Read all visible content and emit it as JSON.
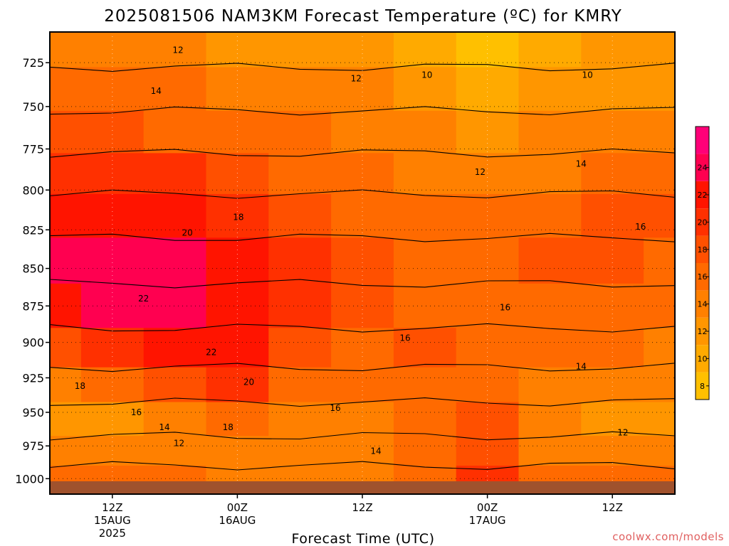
{
  "page": {
    "title": "2025081506 NAM3KM Forecast Temperature (ºC) for KMRY",
    "credit": "coolwx.com/models"
  },
  "chart_data": {
    "type": "heatmap",
    "subtype": "time-height filled contour",
    "title": "2025081506 NAM3KM Forecast Temperature (ºC) for KMRY",
    "xlabel": "Forecast Time (UTC)",
    "ylabel": "",
    "x_ticks": [
      {
        "label": "12Z",
        "sub": [
          "15AUG",
          "2025"
        ],
        "hour": 6
      },
      {
        "label": "00Z",
        "sub": [
          "16AUG"
        ],
        "hour": 18
      },
      {
        "label": "12Z",
        "sub": [],
        "hour": 30
      },
      {
        "label": "00Z",
        "sub": [
          "17AUG"
        ],
        "hour": 42
      },
      {
        "label": "12Z",
        "sub": [],
        "hour": 54
      }
    ],
    "xlim_hours": [
      0,
      60
    ],
    "y_ticks": [
      725,
      750,
      775,
      800,
      825,
      850,
      875,
      900,
      925,
      950,
      975,
      1000
    ],
    "y_unit": "hPa",
    "ylim": [
      708,
      1012
    ],
    "y_scale": "log",
    "grid": true,
    "surface_pressure_hpa": 1002,
    "colorbar": {
      "ticks": [
        8,
        10,
        12,
        14,
        16,
        18,
        20,
        22,
        24
      ],
      "levels": [
        7,
        9,
        11,
        13,
        15,
        17,
        19,
        21,
        23,
        25,
        27
      ],
      "colors": [
        "#ffc000",
        "#ffaa00",
        "#ff9600",
        "#ff8000",
        "#ff6a00",
        "#ff5000",
        "#ff3000",
        "#ff1400",
        "#ff0050",
        "#ff0078"
      ],
      "placement": "right"
    },
    "fill_bands": [
      {
        "t": 0,
        "colors": [
          "#ff8000",
          "#ff6a00",
          "#ff5000",
          "#ff3000",
          "#ff1400",
          "#ff0050",
          "#ff1400",
          "#ff5000",
          "#ff8000",
          "#ff9600",
          "#ff8000",
          "#ff6a00"
        ]
      },
      {
        "t": 6,
        "colors": [
          "#ff8000",
          "#ff6a00",
          "#ff5000",
          "#ff3000",
          "#ff1400",
          "#ff0050",
          "#ff0050",
          "#ff3000",
          "#ff6a00",
          "#ff9600",
          "#ff8000",
          "#ff6a00"
        ]
      },
      {
        "t": 12,
        "colors": [
          "#ff8000",
          "#ff6a00",
          "#ff6a00",
          "#ff3000",
          "#ff1400",
          "#ff0050",
          "#ff0050",
          "#ff1400",
          "#ff5000",
          "#ff8000",
          "#ff8000",
          "#ff6a00"
        ]
      },
      {
        "t": 18,
        "colors": [
          "#ff9600",
          "#ff8000",
          "#ff6a00",
          "#ff5000",
          "#ff3000",
          "#ff1400",
          "#ff1400",
          "#ff1400",
          "#ff3000",
          "#ff6a00",
          "#ff8000",
          "#ff8000"
        ]
      },
      {
        "t": 24,
        "colors": [
          "#ff9600",
          "#ff8000",
          "#ff6a00",
          "#ff6a00",
          "#ff5000",
          "#ff3000",
          "#ff3000",
          "#ff5000",
          "#ff6a00",
          "#ff8000",
          "#ff8000",
          "#ff8000"
        ]
      },
      {
        "t": 30,
        "colors": [
          "#ff9600",
          "#ff8000",
          "#ff8000",
          "#ff6a00",
          "#ff6a00",
          "#ff5000",
          "#ff5000",
          "#ff6a00",
          "#ff6a00",
          "#ff8000",
          "#ff8000",
          "#ff8000"
        ]
      },
      {
        "t": 36,
        "colors": [
          "#ffaa00",
          "#ff9600",
          "#ff8000",
          "#ff8000",
          "#ff6a00",
          "#ff6a00",
          "#ff6a00",
          "#ff5000",
          "#ff6a00",
          "#ff6a00",
          "#ff6a00",
          "#ff6a00"
        ]
      },
      {
        "t": 42,
        "colors": [
          "#ffc000",
          "#ffaa00",
          "#ff9600",
          "#ff8000",
          "#ff6a00",
          "#ff6a00",
          "#ff6a00",
          "#ff6a00",
          "#ff6a00",
          "#ff5000",
          "#ff5000",
          "#ff3000"
        ]
      },
      {
        "t": 48,
        "colors": [
          "#ffaa00",
          "#ff9600",
          "#ff8000",
          "#ff8000",
          "#ff6a00",
          "#ff5000",
          "#ff6a00",
          "#ff6a00",
          "#ff8000",
          "#ff8000",
          "#ff8000",
          "#ff6a00"
        ]
      },
      {
        "t": 54,
        "colors": [
          "#ff9600",
          "#ff9600",
          "#ff8000",
          "#ff6a00",
          "#ff5000",
          "#ff5000",
          "#ff6a00",
          "#ff6a00",
          "#ff8000",
          "#ff9600",
          "#ff8000",
          "#ff6a00"
        ]
      },
      {
        "t": 60,
        "colors": [
          "#ff9600",
          "#ff9600",
          "#ff8000",
          "#ff6a00",
          "#ff5000",
          "#ff6a00",
          "#ff6a00",
          "#ff8000",
          "#ff8000",
          "#ff9600",
          "#ff8000",
          "#ff6a00"
        ]
      }
    ],
    "band_pressures": [
      715,
      740,
      765,
      790,
      815,
      845,
      875,
      905,
      930,
      955,
      980,
      1000
    ],
    "contour_labels": [
      {
        "text": "12",
        "hour": 12.3,
        "p": 718
      },
      {
        "text": "12",
        "hour": 29.4,
        "p": 734
      },
      {
        "text": "10",
        "hour": 36.2,
        "p": 732
      },
      {
        "text": "10",
        "hour": 51.6,
        "p": 732
      },
      {
        "text": "14",
        "hour": 10.2,
        "p": 741
      },
      {
        "text": "12",
        "hour": 41.3,
        "p": 789
      },
      {
        "text": "14",
        "hour": 51.0,
        "p": 784
      },
      {
        "text": "18",
        "hour": 18.1,
        "p": 817
      },
      {
        "text": "20",
        "hour": 13.2,
        "p": 827
      },
      {
        "text": "16",
        "hour": 56.7,
        "p": 823
      },
      {
        "text": "22",
        "hour": 9.0,
        "p": 870
      },
      {
        "text": "16",
        "hour": 43.7,
        "p": 876
      },
      {
        "text": "16",
        "hour": 34.1,
        "p": 897
      },
      {
        "text": "22",
        "hour": 15.5,
        "p": 907
      },
      {
        "text": "20",
        "hour": 19.1,
        "p": 928
      },
      {
        "text": "18",
        "hour": 2.9,
        "p": 931
      },
      {
        "text": "16",
        "hour": 27.4,
        "p": 947
      },
      {
        "text": "16",
        "hour": 8.3,
        "p": 950
      },
      {
        "text": "14",
        "hour": 11.0,
        "p": 961
      },
      {
        "text": "18",
        "hour": 17.1,
        "p": 961
      },
      {
        "text": "12",
        "hour": 55.0,
        "p": 965
      },
      {
        "text": "12",
        "hour": 12.4,
        "p": 973
      },
      {
        "text": "14",
        "hour": 31.3,
        "p": 979
      },
      {
        "text": "14",
        "hour": 51.0,
        "p": 917
      }
    ]
  }
}
